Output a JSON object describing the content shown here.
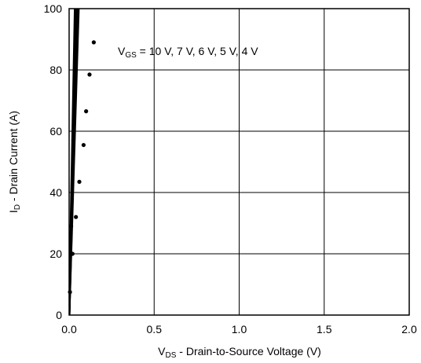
{
  "chart_data": {
    "type": "line",
    "xlabel": {
      "main": "V",
      "sub": "DS",
      "rest": " - Drain-to-Source Voltage (V)"
    },
    "ylabel": {
      "main": "I",
      "sub": "D",
      "rest": " - Drain Current (A)"
    },
    "xlim": [
      0,
      2
    ],
    "ylim": [
      0,
      100
    ],
    "x_ticks": [
      "0.0",
      "0.5",
      "1.0",
      "1.5",
      "2.0"
    ],
    "x_tick_values": [
      0,
      0.5,
      1.0,
      1.5,
      2.0
    ],
    "y_ticks": [
      "0",
      "20",
      "40",
      "60",
      "80",
      "100"
    ],
    "y_tick_values": [
      0,
      20,
      40,
      60,
      80,
      100
    ],
    "grid": true,
    "annotation": {
      "main": "V",
      "sub": "GS",
      "rest": " = 10 V, 7 V, 6 V, 5 V, 4 V"
    },
    "series": [
      {
        "values": [
          [
            0,
            0
          ],
          [
            0.055,
            100
          ]
        ]
      },
      {
        "values": [
          [
            0,
            0
          ],
          [
            0.05,
            100
          ]
        ]
      },
      {
        "values": [
          [
            0,
            0
          ],
          [
            0.045,
            100
          ]
        ]
      },
      {
        "values": [
          [
            0,
            0
          ],
          [
            0.04,
            100
          ]
        ]
      },
      {
        "values": [
          [
            0,
            0
          ],
          [
            0.035,
            100
          ]
        ]
      }
    ],
    "markers": [
      [
        0.005,
        7.5
      ],
      [
        0.02,
        20
      ],
      [
        0.04,
        32
      ],
      [
        0.06,
        43.5
      ],
      [
        0.085,
        55.5
      ],
      [
        0.1,
        66.5
      ],
      [
        0.12,
        78.5
      ],
      [
        0.145,
        89
      ],
      [
        0.04,
        86
      ],
      [
        0.025,
        57
      ],
      [
        0.012,
        29
      ]
    ],
    "colors": {
      "line": "#000000",
      "grid": "#000000",
      "background": "#ffffff"
    }
  }
}
